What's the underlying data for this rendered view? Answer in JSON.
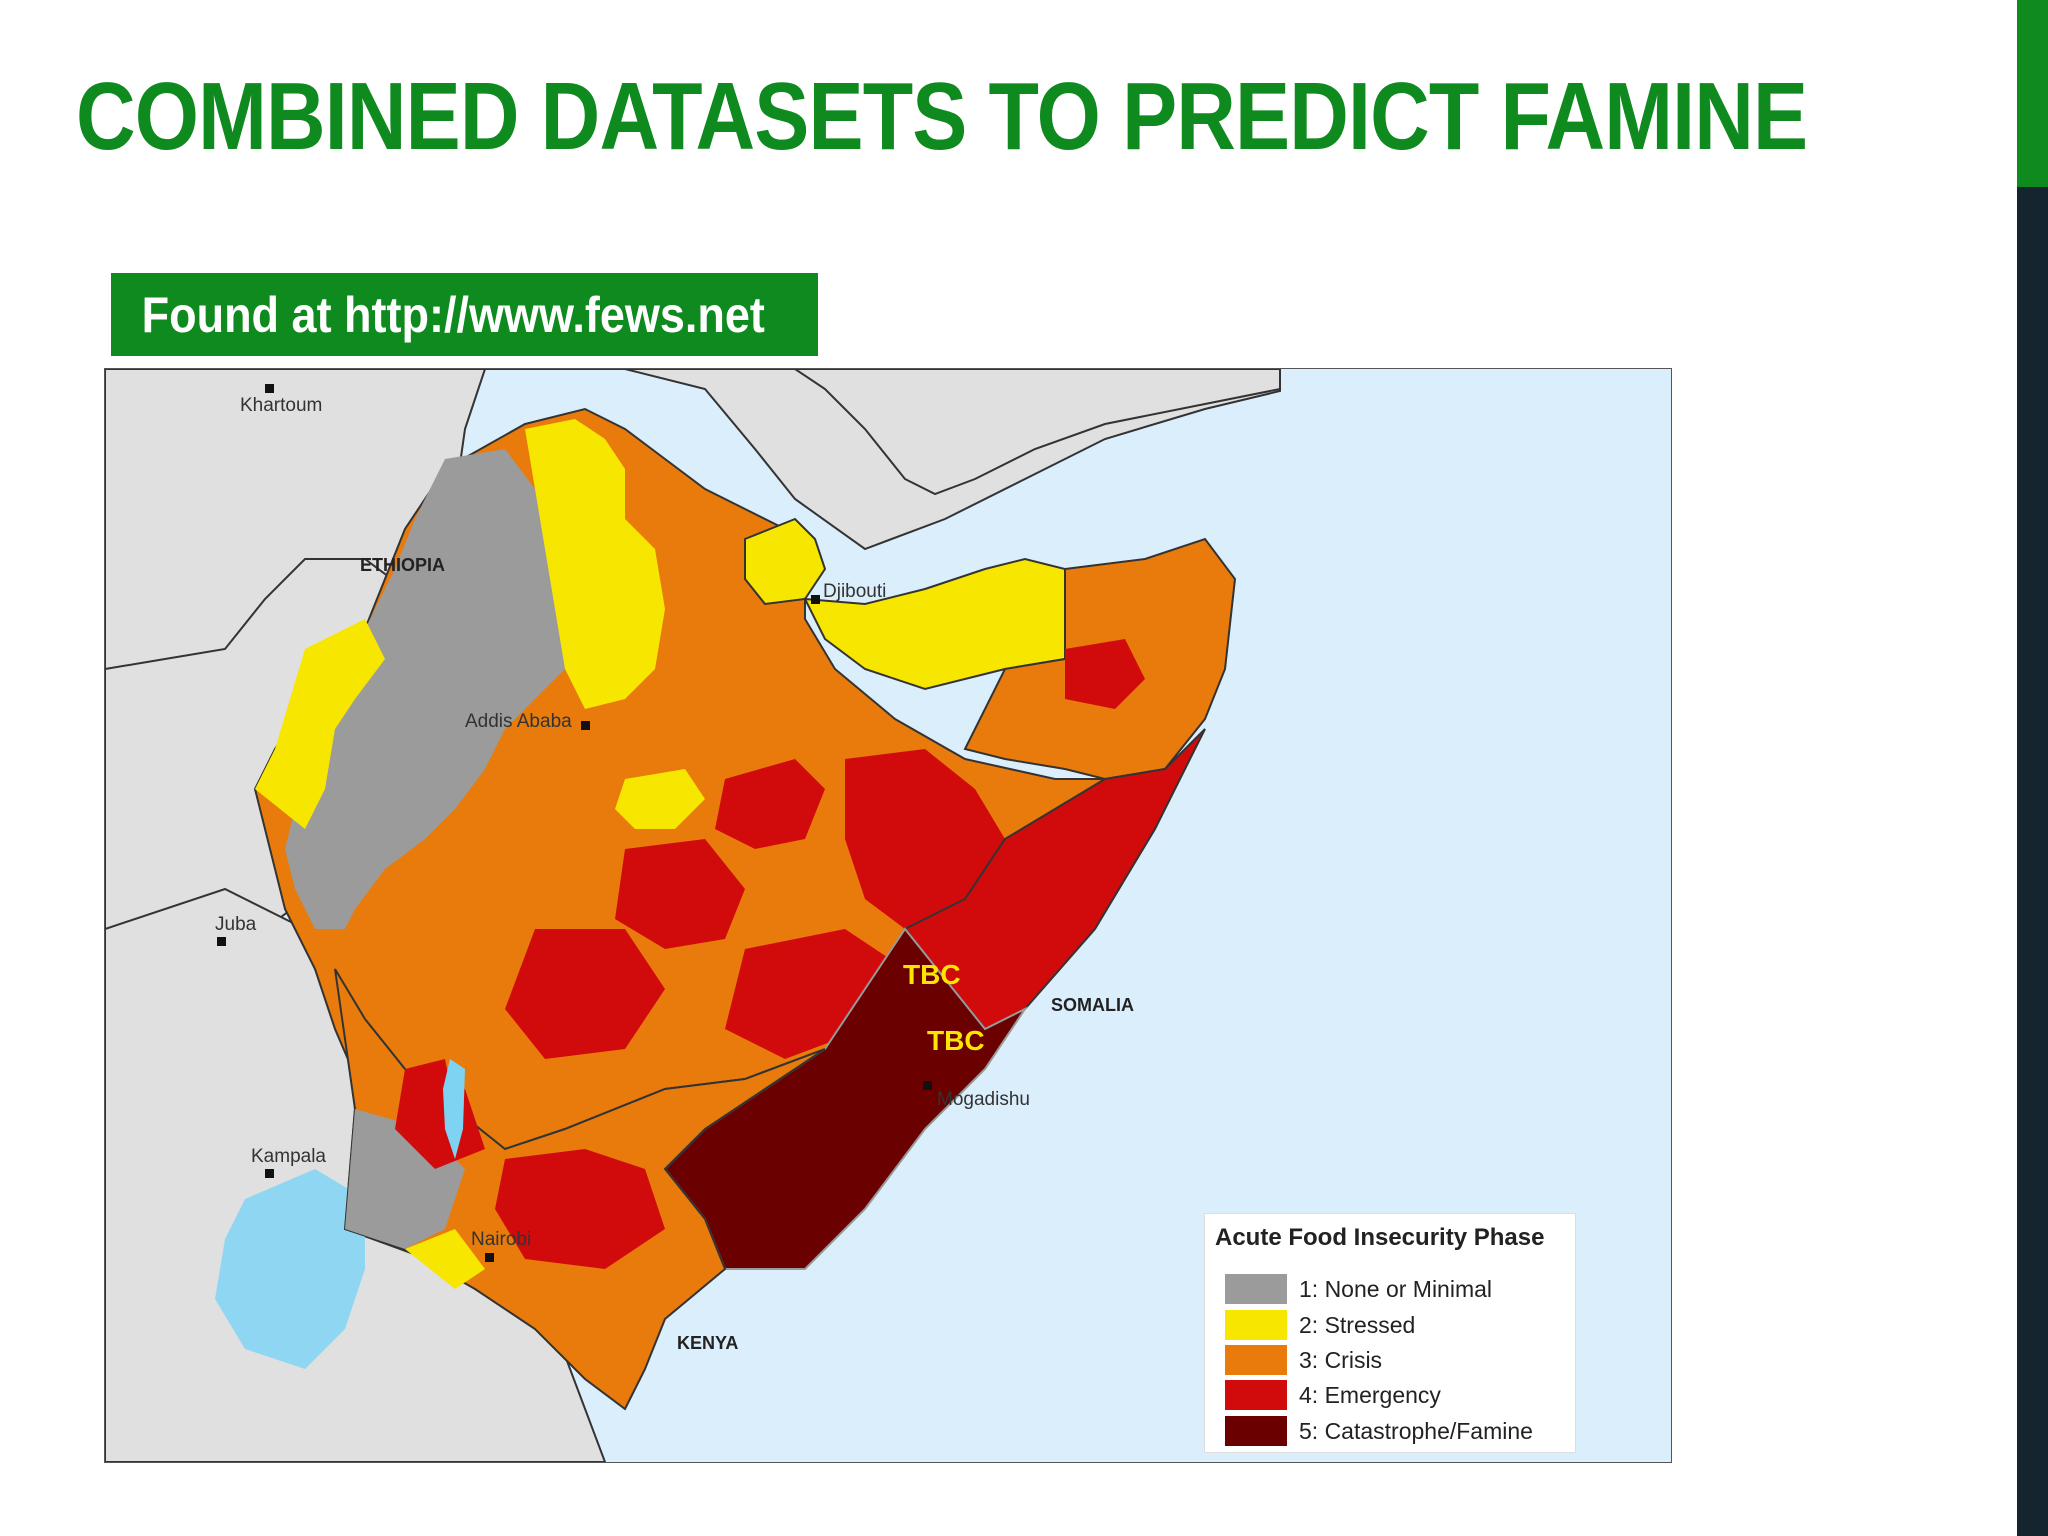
{
  "slide": {
    "title": "COMBINED DATASETS TO PREDICT FAMINE",
    "source": "Found at http://www.fews.net"
  },
  "map": {
    "cities": {
      "khartoum": "Khartoum",
      "djibouti": "Djibouti",
      "addis_ababa": "Addis Ababa",
      "juba": "Juba",
      "kampala": "Kampala",
      "nairobi": "Nairobi",
      "mogadishu": "Mogadishu"
    },
    "countries": {
      "ethiopia": "ETHIOPIA",
      "somalia": "SOMALIA",
      "kenya": "KENYA"
    },
    "annotations": [
      "TBC",
      "TBC"
    ],
    "colors": {
      "water": "#dbeefc",
      "land_other": "#e0e0e0",
      "phase1": "#9b9b9b",
      "phase2": "#f7e600",
      "phase3": "#e87b0c",
      "phase4": "#d10b0b",
      "phase5": "#6b0000",
      "lake": "#7fd3f2"
    },
    "legend": {
      "title": "Acute Food Insecurity Phase",
      "items": [
        {
          "label": "1: None or Minimal",
          "color": "#9b9b9b"
        },
        {
          "label": "2: Stressed",
          "color": "#f7e600"
        },
        {
          "label": "3: Crisis",
          "color": "#e87b0c"
        },
        {
          "label": "4: Emergency",
          "color": "#d10b0b"
        },
        {
          "label": "5: Catastrophe/Famine",
          "color": "#6b0000"
        }
      ]
    }
  }
}
